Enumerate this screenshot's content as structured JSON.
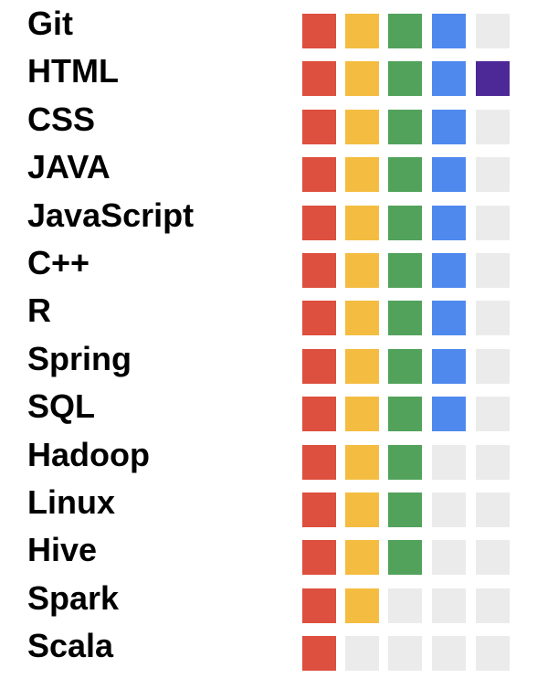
{
  "scale": {
    "max_level": 5,
    "level_colors": [
      "#dd4f3e",
      "#f4bd41",
      "#52a25b",
      "#4f89ee",
      "#4d2897"
    ],
    "empty_color": "#ebebeb"
  },
  "skills": [
    {
      "name": "Git",
      "level": 4
    },
    {
      "name": "HTML",
      "level": 5
    },
    {
      "name": "CSS",
      "level": 4
    },
    {
      "name": "JAVA",
      "level": 4
    },
    {
      "name": "JavaScript",
      "level": 4
    },
    {
      "name": "C++",
      "level": 4
    },
    {
      "name": "R",
      "level": 4
    },
    {
      "name": "Spring",
      "level": 4
    },
    {
      "name": "SQL",
      "level": 4
    },
    {
      "name": "Hadoop",
      "level": 3
    },
    {
      "name": "Linux",
      "level": 3
    },
    {
      "name": "Hive",
      "level": 3
    },
    {
      "name": "Spark",
      "level": 2
    },
    {
      "name": "Scala",
      "level": 1
    }
  ]
}
